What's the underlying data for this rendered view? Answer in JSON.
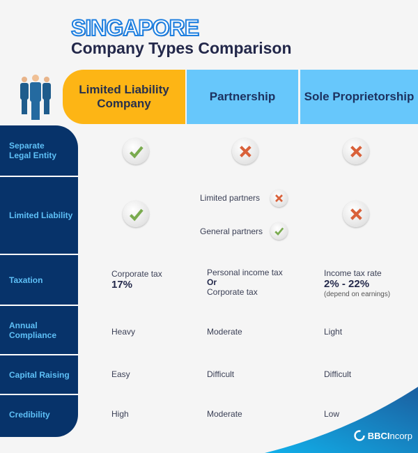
{
  "title": {
    "country": "SINGAPORE",
    "subtitle": "Company Types Comparison"
  },
  "columns": [
    "Limited Liability Company",
    "Partnership",
    "Sole Proprietorship"
  ],
  "rows": [
    {
      "label": "Separate Legal Entity",
      "llc": "check",
      "partnership": "cross",
      "sole": "cross"
    },
    {
      "label": "Limited Liability",
      "llc": "check",
      "partnership": [
        {
          "label": "Limited partners",
          "icon": "cross"
        },
        {
          "label": "General partners",
          "icon": "check"
        }
      ],
      "sole": "cross"
    },
    {
      "label": "Taxation",
      "llc": {
        "line1": "Corporate tax",
        "value": "17%"
      },
      "partnership": {
        "line1": "Personal income tax",
        "or": "Or",
        "line2": "Corporate tax"
      },
      "sole": {
        "line1": "Income tax rate",
        "value": "2% - 22%",
        "note": "(depend on earnings)"
      }
    },
    {
      "label": "Annual Compliance",
      "llc": "Heavy",
      "partnership": "Moderate",
      "sole": "Light"
    },
    {
      "label": "Capital Raising",
      "llc": "Easy",
      "partnership": "Difficult",
      "sole": "Difficult"
    },
    {
      "label": "Credibility",
      "llc": "High",
      "partnership": "Moderate",
      "sole": "Low"
    }
  ],
  "brand": {
    "name_bold": "BBCI",
    "name_light": "ncorp"
  },
  "colors": {
    "navy": "#07336a",
    "row_label": "#5ec0f7",
    "llc_header": "#fdb515",
    "other_header": "#67c7fb",
    "check": "#7aab4f",
    "cross": "#d9613a"
  }
}
